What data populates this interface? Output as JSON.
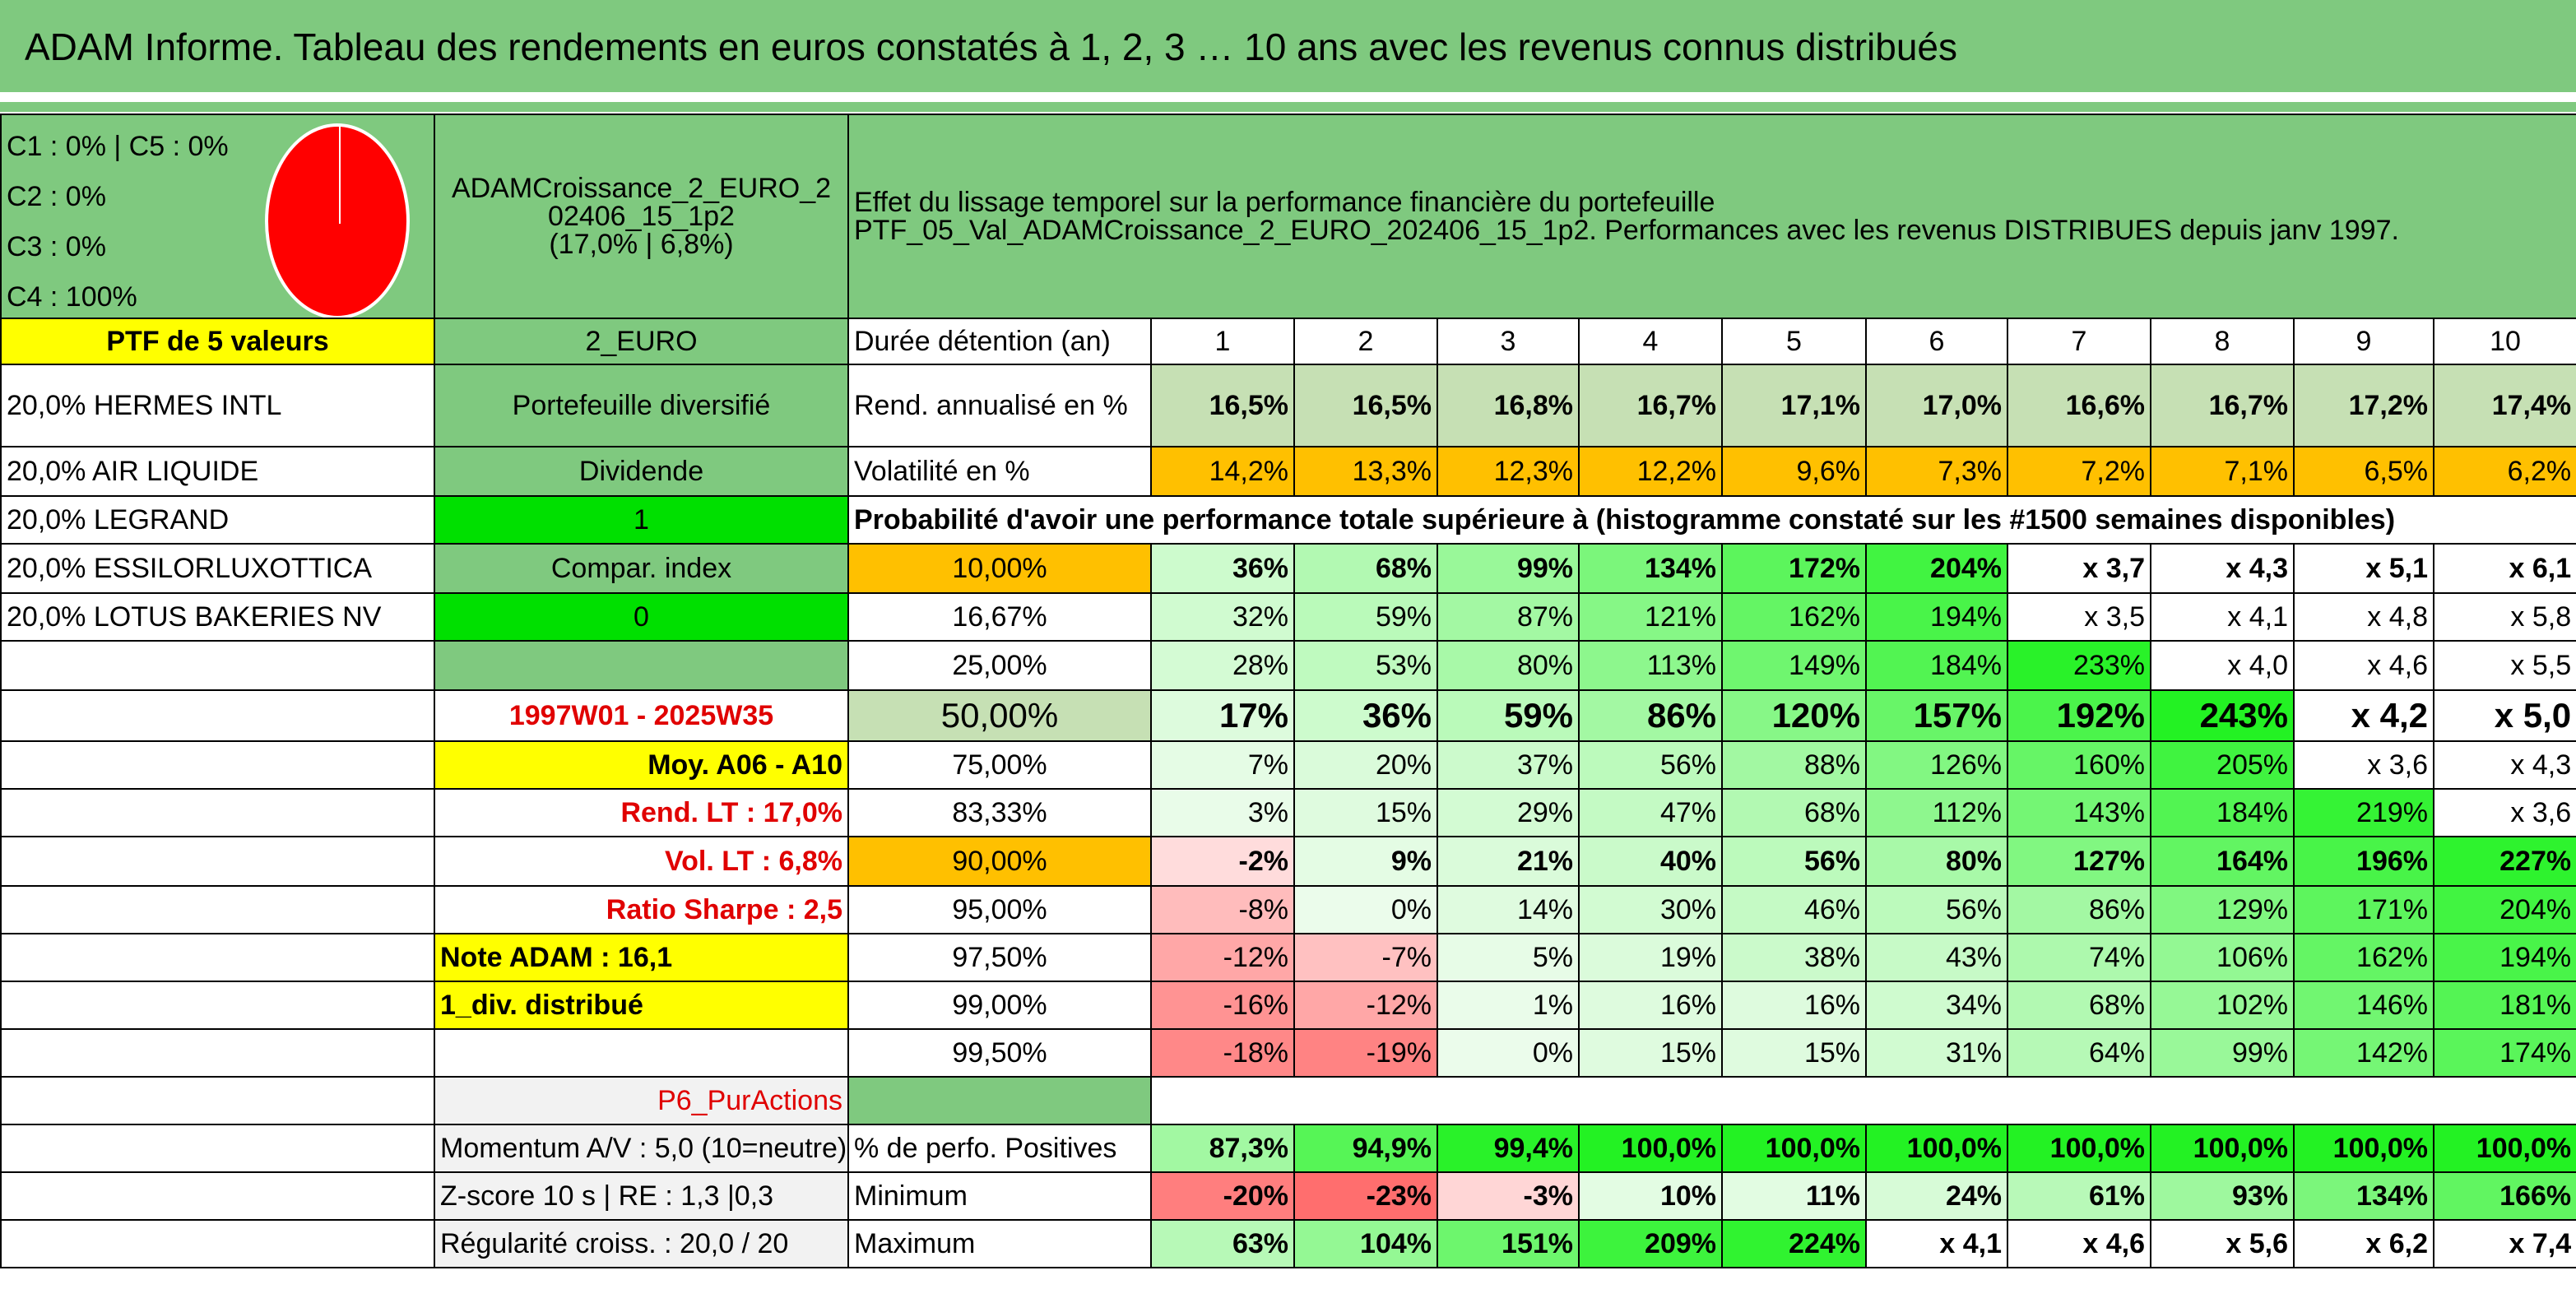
{
  "title": "ADAM Informe. Tableau des rendements en euros constatés à 1, 2, 3 … 10 ans avec les revenus connus distribués",
  "allocation": [
    "C1 : 0% | C5 : 0%",
    "C2 : 0%",
    "C3 : 0%",
    "C4 : 100%"
  ],
  "pie": {
    "color": "#ff0000",
    "segments": [
      {
        "label": "C4",
        "value": 100
      }
    ]
  },
  "fund": {
    "name_line1": "ADAMCroissance_2_EURO_2",
    "name_line2": "02406_15_1p2",
    "stats": "(17,0% | 6,8%)"
  },
  "description": {
    "line1": "Effet du lissage temporel sur la performance financière du portefeuille",
    "line2": "PTF_05_Val_ADAMCroissance_2_EURO_202406_15_1p2. Performances avec les revenus DISTRIBUES depuis janv 1997."
  },
  "left_col": {
    "header": "PTF de 5 valeurs",
    "holdings": [
      "20,0% HERMES INTL",
      "20,0% AIR LIQUIDE",
      "20,0% LEGRAND",
      "20,0% ESSILORLUXOTTICA",
      "20,0% LOTUS BAKERIES NV"
    ]
  },
  "mid_col": {
    "currency": "2_EURO",
    "type": "Portefeuille diversifié",
    "dividend_label": "Dividende",
    "dividend_value": "1",
    "compar_label": "Compar. index",
    "compar_value": "0",
    "period": "1997W01 - 2025W35",
    "moy": "Moy. A06 - A10",
    "rend_lt": "Rend. LT : 17,0%",
    "vol_lt": "Vol. LT : 6,8%",
    "sharpe": "Ratio Sharpe : 2,5",
    "note": "Note ADAM : 16,1",
    "div": "1_div. distribué",
    "category": "P6_PurActions",
    "momentum": "Momentum A/V : 5,0 (10=neutre)",
    "zscore": "Z-score 10 s | RE : 1,3 |0,3",
    "regularite": "Régularité croiss. : 20,0 / 20"
  },
  "table": {
    "duration_label": "Durée détention (an)",
    "years": [
      "1",
      "2",
      "3",
      "4",
      "5",
      "6",
      "7",
      "8",
      "9",
      "10"
    ],
    "rend_label": "Rend. annualisé en %",
    "rend": [
      "16,5%",
      "16,5%",
      "16,8%",
      "16,7%",
      "17,1%",
      "17,0%",
      "16,6%",
      "16,7%",
      "17,2%",
      "17,4%"
    ],
    "vol_label": "Volatilité en %",
    "vol": [
      "14,2%",
      "13,3%",
      "12,3%",
      "12,2%",
      "9,6%",
      "7,3%",
      "7,2%",
      "7,1%",
      "6,5%",
      "6,2%"
    ],
    "prob_title": "Probabilité d'avoir une performance totale supérieure à (histogramme constaté sur les #1500 semaines disponibles)",
    "prob_rows": [
      {
        "p": "10,00%",
        "v": [
          "36%",
          "68%",
          "99%",
          "134%",
          "172%",
          "204%",
          "x 3,7",
          "x 4,3",
          "x 5,1",
          "x 6,1"
        ]
      },
      {
        "p": "16,67%",
        "v": [
          "32%",
          "59%",
          "87%",
          "121%",
          "162%",
          "194%",
          "x 3,5",
          "x 4,1",
          "x 4,8",
          "x 5,8"
        ]
      },
      {
        "p": "25,00%",
        "v": [
          "28%",
          "53%",
          "80%",
          "113%",
          "149%",
          "184%",
          "233%",
          "x 4,0",
          "x 4,6",
          "x 5,5"
        ]
      },
      {
        "p": "50,00%",
        "v": [
          "17%",
          "36%",
          "59%",
          "86%",
          "120%",
          "157%",
          "192%",
          "243%",
          "x 4,2",
          "x 5,0"
        ]
      },
      {
        "p": "75,00%",
        "v": [
          "7%",
          "20%",
          "37%",
          "56%",
          "88%",
          "126%",
          "160%",
          "205%",
          "x 3,6",
          "x 4,3"
        ]
      },
      {
        "p": "83,33%",
        "v": [
          "3%",
          "15%",
          "29%",
          "47%",
          "68%",
          "112%",
          "143%",
          "184%",
          "219%",
          "x 3,6"
        ]
      },
      {
        "p": "90,00%",
        "v": [
          "-2%",
          "9%",
          "21%",
          "40%",
          "56%",
          "80%",
          "127%",
          "164%",
          "196%",
          "227%"
        ]
      },
      {
        "p": "95,00%",
        "v": [
          "-8%",
          "0%",
          "14%",
          "30%",
          "46%",
          "56%",
          "86%",
          "129%",
          "171%",
          "204%"
        ]
      },
      {
        "p": "97,50%",
        "v": [
          "-12%",
          "-7%",
          "5%",
          "19%",
          "38%",
          "43%",
          "74%",
          "106%",
          "162%",
          "194%"
        ]
      },
      {
        "p": "99,00%",
        "v": [
          "-16%",
          "-12%",
          "1%",
          "16%",
          "16%",
          "34%",
          "68%",
          "102%",
          "146%",
          "181%"
        ]
      },
      {
        "p": "99,50%",
        "v": [
          "-18%",
          "-19%",
          "0%",
          "15%",
          "15%",
          "31%",
          "64%",
          "99%",
          "142%",
          "174%"
        ]
      }
    ],
    "pos_label": "% de perfo. Positives",
    "pos": [
      "87,3%",
      "94,9%",
      "99,4%",
      "100,0%",
      "100,0%",
      "100,0%",
      "100,0%",
      "100,0%",
      "100,0%",
      "100,0%"
    ],
    "min_label": "Minimum",
    "min": [
      "-20%",
      "-23%",
      "-3%",
      "10%",
      "11%",
      "24%",
      "61%",
      "93%",
      "134%",
      "166%"
    ],
    "max_label": "Maximum",
    "max": [
      "63%",
      "104%",
      "151%",
      "209%",
      "224%",
      "x 4,1",
      "x 4,6",
      "x 5,6",
      "x 6,2",
      "x 7,4"
    ]
  }
}
